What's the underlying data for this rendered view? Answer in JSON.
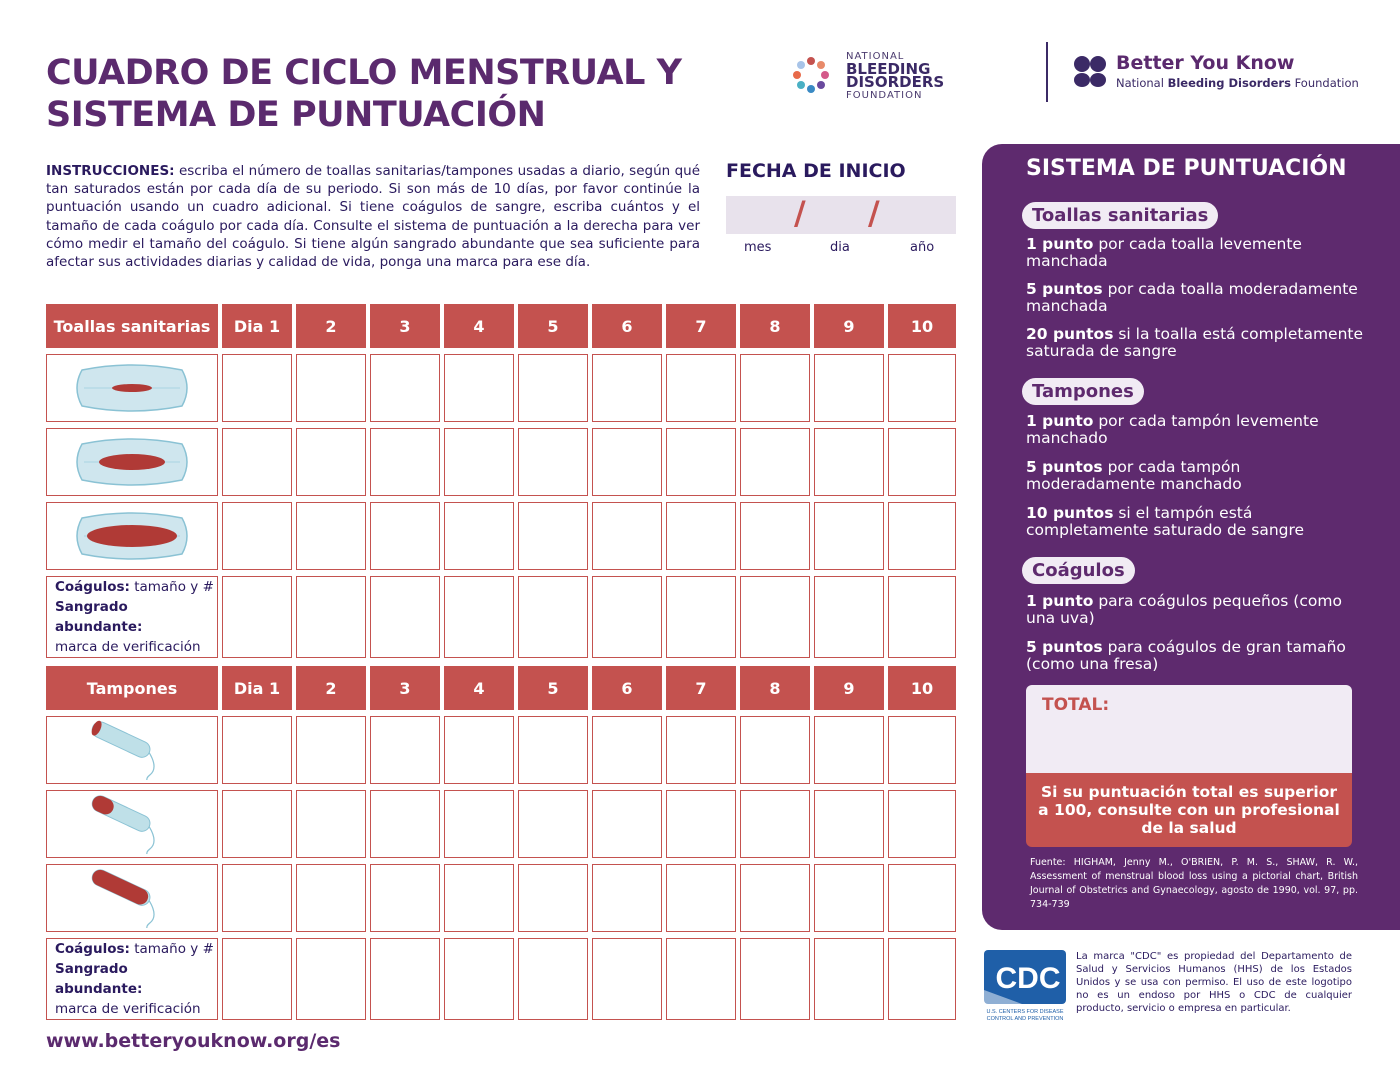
{
  "title_line1": "CUADRO DE CICLO MENSTRUAL Y",
  "title_line2": "SISTEMA DE PUNTUACIÓN",
  "logos": {
    "nbdf_line1": "NATIONAL",
    "nbdf_line2": "BLEEDING DISORDERS",
    "nbdf_line3": "FOUNDATION",
    "byk_title": "Better You Know",
    "byk_sub_pre": "National ",
    "byk_sub_bold": "Bleeding Disorders",
    "byk_sub_post": " Foundation"
  },
  "instructions": {
    "label": "INSTRUCCIONES:",
    "text": " escriba el número de toallas sanitarias/tampones usadas a diario, según qué tan saturados están por cada día de su periodo. Si son más de 10 días, por favor continúe la puntuación usando un cuadro adicional. Si tiene coágulos de sangre, escriba cuántos y el tamaño de cada coágulo por cada día. Consulte el sistema de puntuación a la derecha para ver cómo medir el tamaño del coágulo. Si tiene algún sangrado abundante que sea suficiente para afectar sus actividades diarias y calidad de vida, ponga una marca para ese día."
  },
  "fecha": {
    "title": "FECHA DE INICIO",
    "slash": "/",
    "mes": "mes",
    "dia": "dia",
    "anio": "año"
  },
  "pads_table": {
    "header": "Toallas sanitarias",
    "days": [
      "Dia 1",
      "2",
      "3",
      "4",
      "5",
      "6",
      "7",
      "8",
      "9",
      "10"
    ],
    "clots_label": "Coágulos:",
    "clots_text": " tamaño y #",
    "heavy_label": "Sangrado abundante:",
    "check_text": "marca de verificación"
  },
  "tampons_table": {
    "header": "Tampones",
    "days": [
      "Dia 1",
      "2",
      "3",
      "4",
      "5",
      "6",
      "7",
      "8",
      "9",
      "10"
    ],
    "clots_label": "Coágulos:",
    "clots_text": " tamaño y #",
    "heavy_label": "Sangrado abundante:",
    "check_text": "marca de verificación"
  },
  "scoring": {
    "title": "SISTEMA DE PUNTUACIÓN",
    "pads_pill": "Toallas sanitarias",
    "pads_1_bold": "1 punto",
    "pads_1_text": " por cada toalla levemente manchada",
    "pads_5_bold": "5 puntos",
    "pads_5_text": " por cada toalla moderadamente manchada",
    "pads_20_bold": "20 puntos",
    "pads_20_text": " si la toalla está completamente saturada de sangre",
    "tampons_pill": "Tampones",
    "tampons_1_bold": "1 punto",
    "tampons_1_text": " por cada tampón levemente manchado",
    "tampons_5_bold": "5 puntos",
    "tampons_5_text": " por cada tampón moderadamente manchado",
    "tampons_10_bold": "10 puntos",
    "tampons_10_text": " si el tampón está completamente saturado de sangre",
    "clots_pill": "Coágulos",
    "clots_1_bold": "1 punto",
    "clots_1_text": " para coágulos pequeños (como una uva)",
    "clots_5_bold": "5 puntos",
    "clots_5_text": " para coágulos de gran tamaño (como una fresa)",
    "total_label": "TOTAL:",
    "warning": "Si su puntuación total es superior a 100, consulte con un profesional de la salud",
    "source": "Fuente: HIGHAM, Jenny M., O'BRIEN, P. M. S., SHAW, R. W., Assessment of menstrual blood loss using a pictorial chart, British Journal of Obstetrics and Gynaecology, agosto de 1990, vol. 97, pp. 734-739"
  },
  "cdc": {
    "logo_text": "CDC",
    "logo_sub1": "U.S. CENTERS FOR DISEASE",
    "logo_sub2": "CONTROL AND PREVENTION",
    "note": "La marca \"CDC\" es propiedad del Departamento de Salud y Servicios Humanos (HHS) de los Estados Unidos y se usa con permiso. El uso de este logotipo no es un endoso por HHS o CDC de cualquier producto, servicio o empresa en particular."
  },
  "footer_url": "www.betteryouknow.org/es",
  "colors": {
    "accent_red": "#c4524f",
    "purple": "#5e2a6e",
    "navy": "#2a1a5e"
  }
}
